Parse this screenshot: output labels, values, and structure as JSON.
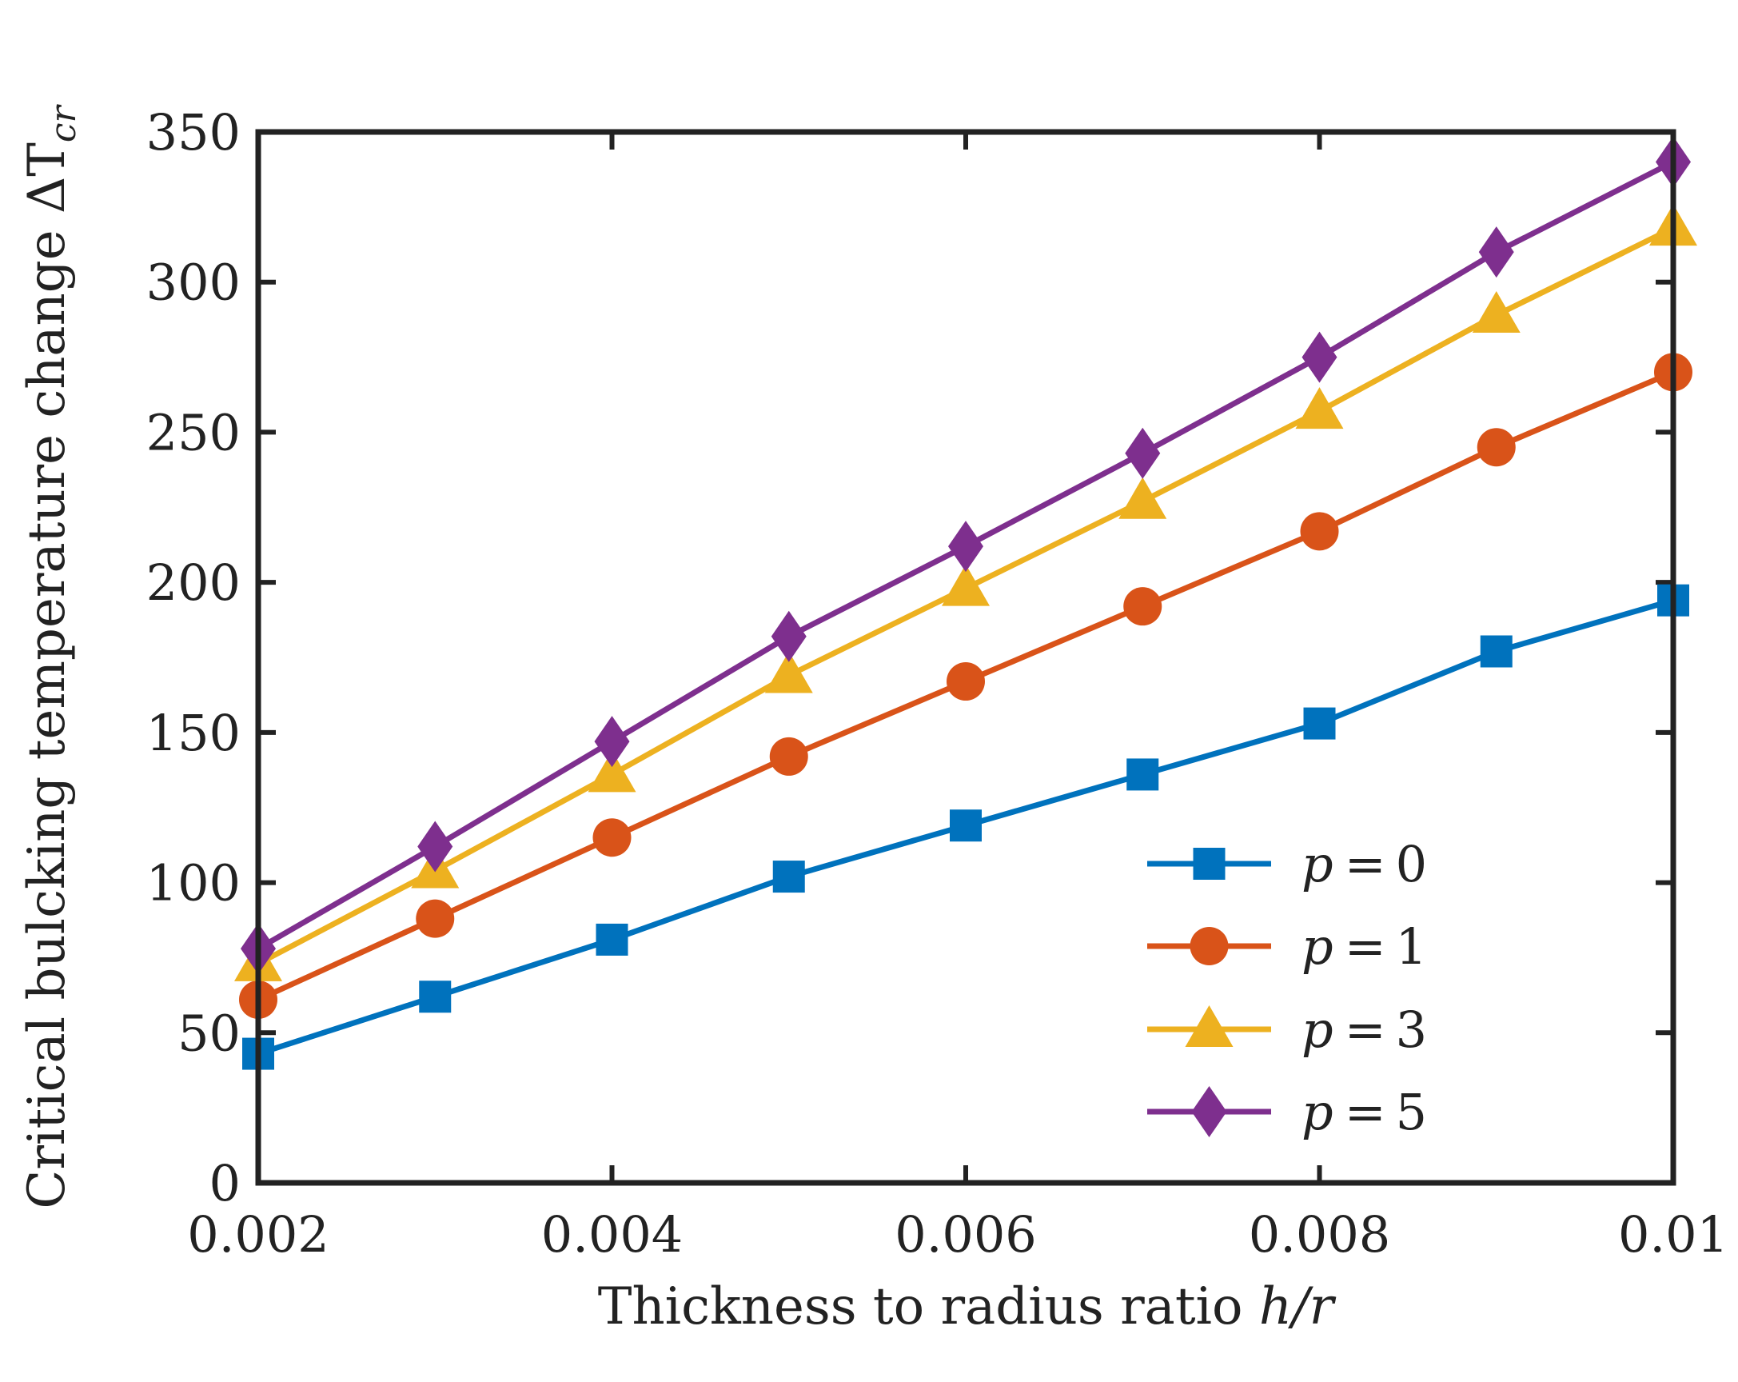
{
  "chart_data": {
    "type": "line",
    "xlabel": "Thickness to radius ratio",
    "xlabel_math": "h/r",
    "ylabel": "Critical bulcking temperature change",
    "ylabel_math_symbol": "ΔT",
    "ylabel_math_sub": "cr",
    "xlim": [
      0.002,
      0.01
    ],
    "ylim": [
      0,
      350
    ],
    "x_ticks": [
      0.002,
      0.004,
      0.006,
      0.008,
      0.01
    ],
    "x_tick_labels": [
      "0.002",
      "0.004",
      "0.006",
      "0.008",
      "0.01"
    ],
    "y_ticks": [
      0,
      50,
      100,
      150,
      200,
      250,
      300,
      350
    ],
    "y_tick_labels": [
      "0",
      "50",
      "100",
      "150",
      "200",
      "250",
      "300",
      "350"
    ],
    "grid": false,
    "legend_position": "bottom-right",
    "x": [
      0.002,
      0.003,
      0.004,
      0.005,
      0.006,
      0.007,
      0.008,
      0.009,
      0.01
    ],
    "series": [
      {
        "name": "p = 0",
        "var": "p",
        "op": "=",
        "val": "0",
        "color": "#0072BD",
        "marker": "square",
        "values": [
          43,
          62,
          81,
          102,
          119,
          136,
          153,
          177,
          194
        ]
      },
      {
        "name": "p = 1",
        "var": "p",
        "op": "=",
        "val": "1",
        "color": "#D95319",
        "marker": "circle",
        "values": [
          61,
          88,
          115,
          142,
          167,
          192,
          217,
          245,
          270
        ]
      },
      {
        "name": "p = 3",
        "var": "p",
        "op": "=",
        "val": "3",
        "color": "#EDB120",
        "marker": "triangle",
        "values": [
          73,
          104,
          136,
          169,
          198,
          227,
          257,
          289,
          318
        ]
      },
      {
        "name": "p = 5",
        "var": "p",
        "op": "=",
        "val": "5",
        "color": "#7E2F8E",
        "marker": "diamond",
        "values": [
          78,
          112,
          147,
          182,
          212,
          243,
          275,
          310,
          340
        ]
      }
    ]
  }
}
